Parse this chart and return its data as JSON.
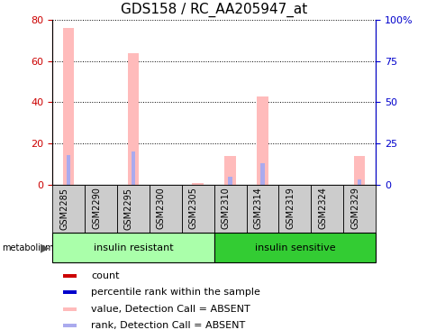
{
  "title": "GDS158 / RC_AA205947_at",
  "samples": [
    "GSM2285",
    "GSM2290",
    "GSM2295",
    "GSM2300",
    "GSM2305",
    "GSM2310",
    "GSM2314",
    "GSM2319",
    "GSM2324",
    "GSM2329"
  ],
  "pink_bars": [
    76,
    0,
    64,
    0,
    1,
    14,
    43,
    0,
    0,
    14
  ],
  "blue_bars": [
    18,
    0,
    20,
    0,
    0,
    5,
    13,
    0,
    0,
    3
  ],
  "left_ylim": [
    0,
    80
  ],
  "right_ylim": [
    0,
    100
  ],
  "left_yticks": [
    0,
    20,
    40,
    60,
    80
  ],
  "right_yticks": [
    0,
    25,
    50,
    75,
    100
  ],
  "right_yticklabels": [
    "0",
    "25",
    "50",
    "75",
    "100%"
  ],
  "groups": [
    {
      "label": "insulin resistant",
      "start": 0,
      "end": 5,
      "color": "#aaffaa"
    },
    {
      "label": "insulin sensitive",
      "start": 5,
      "end": 10,
      "color": "#33cc33"
    }
  ],
  "bar_width": 0.35,
  "pink_color": "#ffbbbb",
  "blue_color": "#aaaaee",
  "left_axis_color": "#cc0000",
  "right_axis_color": "#0000cc",
  "legend_items": [
    {
      "label": "count",
      "color": "#cc0000"
    },
    {
      "label": "percentile rank within the sample",
      "color": "#0000cc"
    },
    {
      "label": "value, Detection Call = ABSENT",
      "color": "#ffbbbb"
    },
    {
      "label": "rank, Detection Call = ABSENT",
      "color": "#aaaaee"
    }
  ],
  "sample_box_color": "#cccccc",
  "title_fontsize": 11,
  "tick_fontsize": 8,
  "label_fontsize": 7,
  "legend_fontsize": 8,
  "group_fontsize": 8
}
